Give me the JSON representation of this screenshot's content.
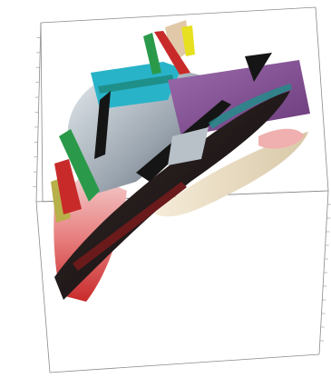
{
  "scene": {
    "title": "",
    "colors": {
      "background": "#ffffff",
      "box_edge": "#8a8a8a",
      "tick": "#a0a0a0",
      "red_body": "#d83a35",
      "pink_body": "#f0b0b0",
      "grey_body": "#b8c0c8",
      "cyan": "#29b3c9",
      "teal": "#1f8f8a",
      "green": "#2a9a4a",
      "yellow": "#e6e020",
      "olive": "#b8b04a",
      "purple": "#8a5a98",
      "beige": "#e8dcc0",
      "black": "#151515",
      "dark_red": "#6a1a1a",
      "tan": "#e0c8a8"
    }
  }
}
